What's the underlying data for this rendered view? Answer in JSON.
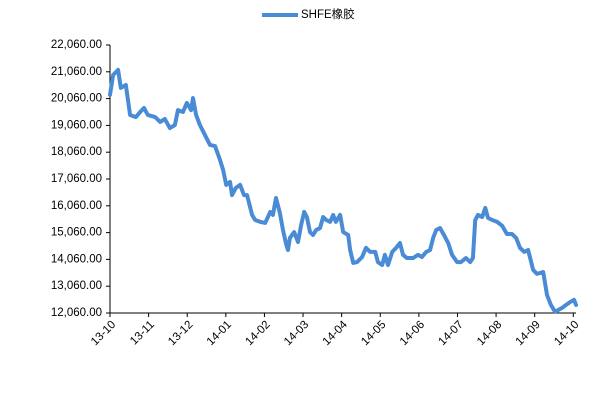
{
  "chart_data": {
    "type": "line",
    "series": [
      {
        "name": "SHFE橡胶",
        "color": "#4a8bd6",
        "x": [
          0,
          0.08,
          0.21,
          0.28,
          0.41,
          0.52,
          0.67,
          0.78,
          0.88,
          0.98,
          1.17,
          1.3,
          1.42,
          1.55,
          1.68,
          1.76,
          1.89,
          1.99,
          2.1,
          2.15,
          2.23,
          2.33,
          2.46,
          2.59,
          2.72,
          2.85,
          2.93,
          3.01,
          3.11,
          3.16,
          3.26,
          3.37,
          3.47,
          3.55,
          3.68,
          3.76,
          3.89,
          4.02,
          4.15,
          4.22,
          4.3,
          4.4,
          4.48,
          4.56,
          4.61,
          4.66,
          4.77,
          4.87,
          4.95,
          5.03,
          5.1,
          5.18,
          5.26,
          5.34,
          5.44,
          5.52,
          5.6,
          5.7,
          5.78,
          5.85,
          5.96,
          6.04,
          6.17,
          6.22,
          6.3,
          6.4,
          6.53,
          6.63,
          6.74,
          6.87,
          6.94,
          7.05,
          7.12,
          7.2,
          7.31,
          7.41,
          7.51,
          7.59,
          7.69,
          7.85,
          7.98,
          8.08,
          8.19,
          8.29,
          8.37,
          8.45,
          8.55,
          8.65,
          8.76,
          8.86,
          8.99,
          9.09,
          9.22,
          9.33,
          9.4,
          9.46,
          9.53,
          9.64,
          9.72,
          9.79,
          9.9,
          10.03,
          10.16,
          10.28,
          10.41,
          10.52,
          10.62,
          10.73,
          10.83,
          10.96,
          11.06,
          11.22,
          11.32,
          11.42,
          11.53,
          11.61,
          11.71,
          11.81,
          11.92,
          12.02,
          12.07
        ],
        "values": [
          20200,
          20940,
          21130,
          20460,
          20570,
          19450,
          19370,
          19560,
          19710,
          19450,
          19370,
          19190,
          19300,
          18960,
          19070,
          19630,
          19560,
          19900,
          19630,
          20080,
          19450,
          19070,
          18700,
          18330,
          18290,
          17770,
          17400,
          16840,
          16950,
          16460,
          16730,
          16840,
          16460,
          16460,
          15720,
          15530,
          15460,
          15420,
          15830,
          15720,
          16350,
          15790,
          15160,
          14640,
          14410,
          14860,
          15080,
          14710,
          15340,
          15830,
          15640,
          15080,
          14970,
          15160,
          15230,
          15640,
          15530,
          15460,
          15720,
          15460,
          15720,
          15080,
          14970,
          14410,
          13930,
          13960,
          14150,
          14490,
          14340,
          14340,
          13960,
          13850,
          14230,
          13850,
          14340,
          14490,
          14670,
          14230,
          14110,
          14110,
          14230,
          14150,
          14340,
          14410,
          14860,
          15160,
          15230,
          14970,
          14670,
          14230,
          13960,
          13960,
          14110,
          13960,
          14110,
          15530,
          15720,
          15640,
          15980,
          15610,
          15530,
          15460,
          15310,
          15010,
          15010,
          14860,
          14490,
          14340,
          14410,
          13670,
          13520,
          13590,
          12730,
          12360,
          12100,
          12170,
          12250,
          12360,
          12470,
          12550,
          12360
        ]
      }
    ],
    "xlim": [
      0,
      12.07
    ],
    "xticks": [
      {
        "value": 0,
        "label": "13-10"
      },
      {
        "value": 1,
        "label": "13-11"
      },
      {
        "value": 2,
        "label": "13-12"
      },
      {
        "value": 3,
        "label": "14-01"
      },
      {
        "value": 4,
        "label": "14-02"
      },
      {
        "value": 5,
        "label": "14-03"
      },
      {
        "value": 6,
        "label": "14-04"
      },
      {
        "value": 7,
        "label": "14-05"
      },
      {
        "value": 8,
        "label": "14-06"
      },
      {
        "value": 9,
        "label": "14-07"
      },
      {
        "value": 10,
        "label": "14-08"
      },
      {
        "value": 11,
        "label": "14-09"
      },
      {
        "value": 12,
        "label": "14-10"
      }
    ],
    "ylim": [
      12060,
      22060
    ],
    "yticks": [
      {
        "value": 12060,
        "label": "12,060.00"
      },
      {
        "value": 13060,
        "label": "13,060.00"
      },
      {
        "value": 14060,
        "label": "14,060.00"
      },
      {
        "value": 15060,
        "label": "15,060.00"
      },
      {
        "value": 16060,
        "label": "16,060.00"
      },
      {
        "value": 17060,
        "label": "17,060.00"
      },
      {
        "value": 18060,
        "label": "18,060.00"
      },
      {
        "value": 19060,
        "label": "19,060.00"
      },
      {
        "value": 20060,
        "label": "20,060.00"
      },
      {
        "value": 21060,
        "label": "21,060.00"
      },
      {
        "value": 22060,
        "label": "22,060.00"
      }
    ],
    "grid": false,
    "legend": "top"
  }
}
